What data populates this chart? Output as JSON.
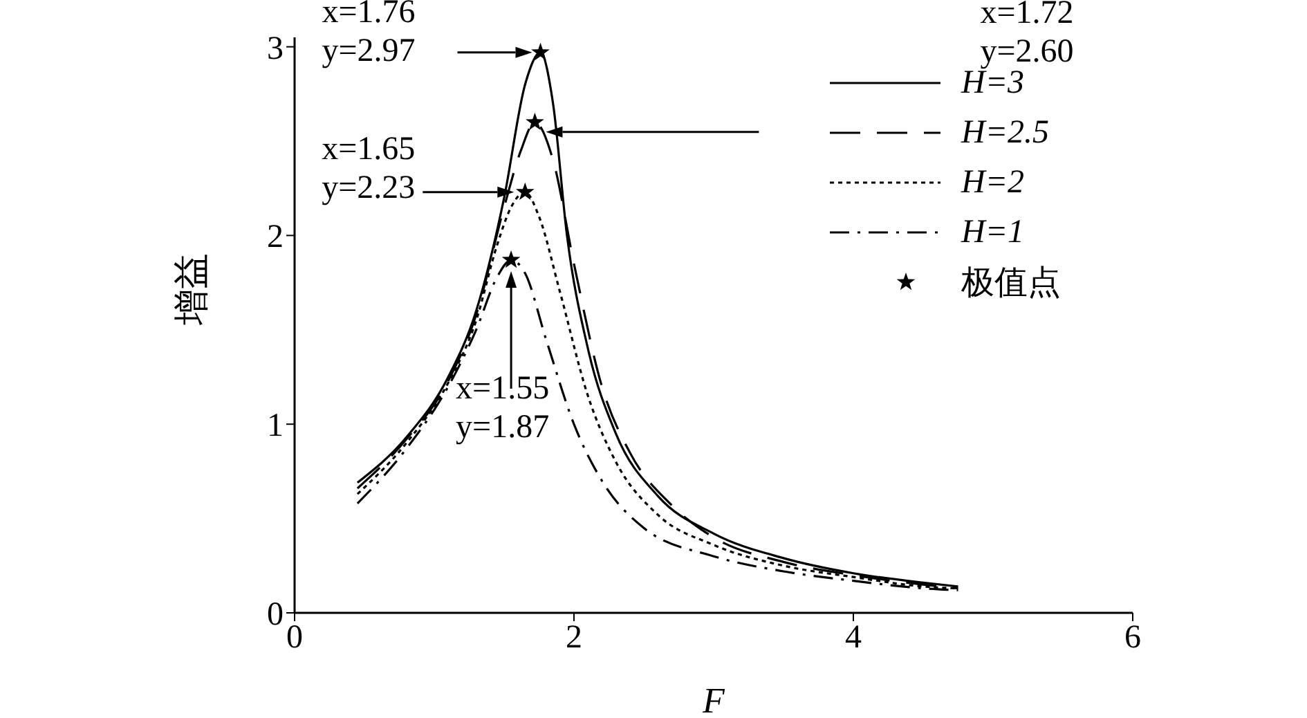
{
  "chart_data": {
    "type": "line",
    "xlabel": "F",
    "ylabel": "增益",
    "xlim": [
      0,
      6
    ],
    "xticks": [
      0,
      2,
      4,
      6
    ],
    "ylim": [
      0,
      3.05
    ],
    "yticks": [
      0,
      1,
      2,
      3
    ],
    "grid": false,
    "legend": "top right",
    "marker": "none",
    "series": [
      {
        "name": "H=3",
        "color": "#000000",
        "line_style": "solid",
        "x": [
          0.45,
          0.8,
          1.1,
          1.3,
          1.5,
          1.65,
          1.76,
          1.85,
          1.95,
          2.1,
          2.3,
          2.6,
          3.0,
          3.5,
          4.0,
          4.5,
          4.75
        ],
        "values": [
          0.69,
          0.93,
          1.25,
          1.6,
          2.2,
          2.8,
          2.97,
          2.7,
          2.0,
          1.4,
          0.95,
          0.62,
          0.42,
          0.29,
          0.21,
          0.16,
          0.14
        ]
      },
      {
        "name": "H=2.5",
        "color": "#000000",
        "line_style": "dashed",
        "x": [
          0.45,
          0.8,
          1.1,
          1.3,
          1.5,
          1.62,
          1.72,
          1.85,
          2.0,
          2.2,
          2.4,
          2.7,
          3.0,
          3.5,
          4.0,
          4.5,
          4.75
        ],
        "values": [
          0.66,
          0.92,
          1.23,
          1.58,
          2.15,
          2.45,
          2.6,
          2.4,
          1.85,
          1.2,
          0.85,
          0.57,
          0.4,
          0.27,
          0.2,
          0.15,
          0.13
        ]
      },
      {
        "name": "H=2",
        "color": "#000000",
        "line_style": "dotted",
        "x": [
          0.45,
          0.8,
          1.1,
          1.3,
          1.45,
          1.55,
          1.65,
          1.75,
          1.9,
          2.1,
          2.3,
          2.6,
          3.0,
          3.5,
          4.0,
          4.5,
          4.75
        ],
        "values": [
          0.63,
          0.9,
          1.22,
          1.55,
          1.95,
          2.15,
          2.23,
          2.1,
          1.7,
          1.15,
          0.8,
          0.52,
          0.36,
          0.25,
          0.19,
          0.14,
          0.13
        ]
      },
      {
        "name": "H=1",
        "color": "#000000",
        "line_style": "dashdot",
        "x": [
          0.45,
          0.8,
          1.1,
          1.3,
          1.45,
          1.55,
          1.65,
          1.8,
          2.0,
          2.2,
          2.5,
          3.0,
          3.5,
          4.0,
          4.5,
          4.75
        ],
        "values": [
          0.58,
          0.87,
          1.2,
          1.5,
          1.78,
          1.87,
          1.8,
          1.45,
          1.0,
          0.7,
          0.45,
          0.3,
          0.22,
          0.17,
          0.13,
          0.12
        ]
      },
      {
        "name": "极值点",
        "type": "scatter",
        "marker": "star",
        "color": "#000000",
        "x": [
          1.76,
          1.72,
          1.65,
          1.55
        ],
        "values": [
          2.97,
          2.6,
          2.23,
          1.87
        ]
      }
    ],
    "annotations": [
      "x=1.76\ny=2.97",
      "x=1.72\ny=2.60",
      "x=1.65\ny=2.23",
      "x=1.55\ny=1.87"
    ]
  }
}
